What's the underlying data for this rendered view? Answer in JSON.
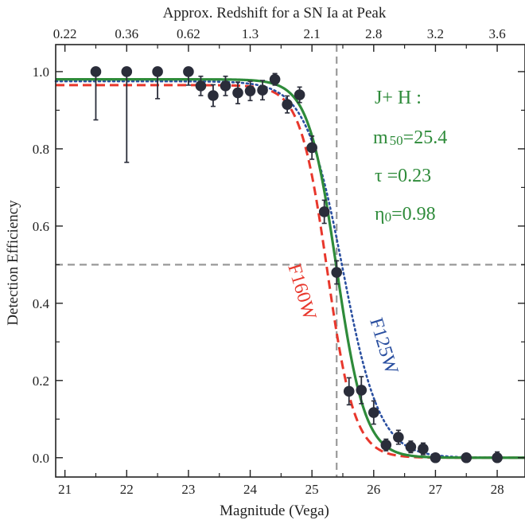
{
  "chart_data": {
    "type": "scatter",
    "title": "",
    "xlabel": "Magnitude (Vega)",
    "ylabel": "Detection Efficiency",
    "top_xlabel": "Approx. Redshift for a SN Ia at Peak",
    "xlim": [
      20.85,
      28.45
    ],
    "ylim": [
      -0.05,
      1.07
    ],
    "x_ticks": [
      21,
      22,
      23,
      24,
      25,
      26,
      27,
      28
    ],
    "y_ticks": [
      0.0,
      0.2,
      0.4,
      0.6,
      0.8,
      1.0
    ],
    "top_ticks": [
      {
        "x": 21,
        "label": "0.22"
      },
      {
        "x": 22,
        "label": "0.36"
      },
      {
        "x": 23,
        "label": "0.62"
      },
      {
        "x": 24,
        "label": "1.3"
      },
      {
        "x": 25,
        "label": "2.1"
      },
      {
        "x": 26,
        "label": "2.8"
      },
      {
        "x": 27,
        "label": "3.2"
      },
      {
        "x": 28,
        "label": "3.6"
      }
    ],
    "grid": false,
    "points": {
      "name": "J+H data",
      "color": "#2a2d3a",
      "x": [
        21.5,
        22.0,
        22.5,
        23.0,
        23.2,
        23.4,
        23.6,
        23.8,
        24.0,
        24.2,
        24.4,
        24.6,
        24.8,
        25.0,
        25.2,
        25.4,
        25.6,
        25.8,
        26.0,
        26.2,
        26.4,
        26.6,
        26.8,
        27.0,
        27.5,
        28.0
      ],
      "y": [
        1.0,
        1.0,
        1.0,
        1.0,
        0.963,
        0.938,
        0.963,
        0.945,
        0.95,
        0.952,
        0.98,
        0.915,
        0.94,
        0.803,
        0.637,
        0.48,
        0.172,
        0.175,
        0.117,
        0.033,
        0.053,
        0.028,
        0.023,
        0.0,
        0.0,
        0.0
      ],
      "err_low": [
        0.125,
        0.235,
        0.07,
        0.035,
        0.025,
        0.028,
        0.025,
        0.028,
        0.025,
        0.025,
        0.015,
        0.022,
        0.02,
        0.03,
        0.03,
        0.03,
        0.035,
        0.035,
        0.03,
        0.015,
        0.018,
        0.015,
        0.015,
        0.005,
        0.005,
        0.005
      ],
      "err_high": [
        0.0,
        0.0,
        0.0,
        0.0,
        0.025,
        0.028,
        0.025,
        0.028,
        0.025,
        0.025,
        0.015,
        0.022,
        0.02,
        0.03,
        0.03,
        0.03,
        0.035,
        0.035,
        0.03,
        0.015,
        0.018,
        0.015,
        0.015,
        0.01,
        0.01,
        0.015
      ]
    },
    "curves": [
      {
        "name": "J+H",
        "color": "#2e8b3a",
        "style": "solid",
        "m50": 25.4,
        "tau": 0.23,
        "eta0": 0.98,
        "label": ""
      },
      {
        "name": "F160W",
        "color": "#e8372c",
        "style": "dashed",
        "m50": 25.25,
        "tau": 0.22,
        "eta0": 0.965,
        "label": "F160W"
      },
      {
        "name": "F125W",
        "color": "#2a4fa0",
        "style": "dotted",
        "m50": 25.5,
        "tau": 0.3,
        "eta0": 0.975,
        "label": "F125W"
      }
    ],
    "ref_lines": {
      "vertical_x": 25.4,
      "horizontal_y": 0.5,
      "color": "#999999"
    },
    "annotation": {
      "color": "#2e8b3a",
      "line1": "J+ H :",
      "m_symbol": "m",
      "m_subscript": "50",
      "m_value": "=25.4",
      "tau_text": "τ =0.23",
      "eta_symbol": "η",
      "eta_subscript": "0",
      "eta_value": "=0.98"
    }
  }
}
